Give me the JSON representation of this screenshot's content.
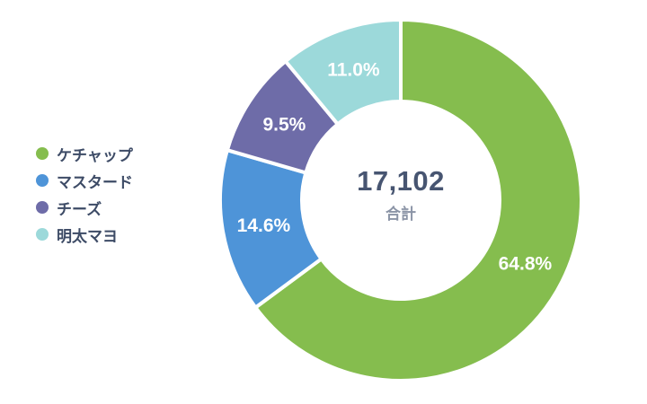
{
  "chart_data": {
    "type": "pie",
    "subtype": "donut",
    "title": "",
    "total_value": "17,102",
    "total_label": "合計",
    "legend_position": "left",
    "direction": "clockwise",
    "start_angle_deg": 0,
    "slices": [
      {
        "label": "ケチャップ",
        "percent": 64.8,
        "display": "64.8%",
        "color": "#85bd4e"
      },
      {
        "label": "マスタード",
        "percent": 14.6,
        "display": "14.6%",
        "color": "#4e94d8"
      },
      {
        "label": "チーズ",
        "percent": 9.5,
        "display": "9.5%",
        "color": "#6e6ca8"
      },
      {
        "label": "明太マヨ",
        "percent": 11.0,
        "display": "11.0%",
        "color": "#9cd9da"
      }
    ]
  }
}
